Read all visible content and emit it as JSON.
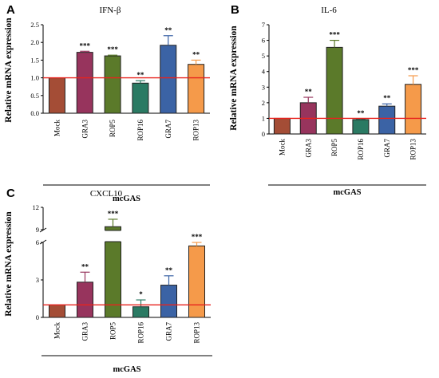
{
  "colors": {
    "Mock": "#a44d36",
    "GRA3": "#97345d",
    "ROP5": "#5b7a2a",
    "ROP16": "#2a7a63",
    "GRA7": "#3b63a5",
    "ROP13": "#f59a4a",
    "reference_line": "#e8231e",
    "error_bar_override_C_ROP13": "#f59a4a"
  },
  "chart_data": [
    {
      "panel": "A",
      "type": "bar",
      "title": "IFN-β",
      "ylabel": "Relative mRNA expression",
      "group_label": "mcGAS",
      "categories": [
        "Mock",
        "GRA3",
        "ROP5",
        "ROP16",
        "GRA7",
        "ROP13"
      ],
      "values": [
        1.0,
        1.72,
        1.62,
        0.85,
        1.92,
        1.38
      ],
      "errors": [
        0.0,
        0.03,
        0.02,
        0.07,
        0.27,
        0.12
      ],
      "significance": [
        "",
        "***",
        "***",
        "**",
        "**",
        "**"
      ],
      "ylim": [
        0,
        2.5
      ],
      "yticks": [
        "0.0",
        "0.5",
        "1.0",
        "1.5",
        "2.0",
        "2.5"
      ],
      "reference_value": 1.0
    },
    {
      "panel": "B",
      "type": "bar",
      "title": "IL-6",
      "ylabel": "Relative mRNA expression",
      "group_label": "mcGAS",
      "categories": [
        "Mock",
        "GRA3",
        "ROP5",
        "ROP16",
        "GRA7",
        "ROP13"
      ],
      "values": [
        1.0,
        2.0,
        5.55,
        0.92,
        1.78,
        3.18
      ],
      "errors": [
        0.0,
        0.35,
        0.45,
        0.06,
        0.15,
        0.55
      ],
      "significance": [
        "",
        "**",
        "***",
        "**",
        "**",
        "***"
      ],
      "ylim": [
        0,
        7
      ],
      "yticks": [
        "0",
        "1",
        "2",
        "3",
        "4",
        "5",
        "6",
        "7"
      ],
      "reference_value": 1.0
    },
    {
      "panel": "C",
      "type": "bar",
      "title": "CXCL10",
      "ylabel": "Relative mRNA expression",
      "group_label": "mcGAS",
      "categories": [
        "Mock",
        "GRA3",
        "ROP5",
        "ROP16",
        "GRA7",
        "ROP13"
      ],
      "values": [
        1.0,
        2.82,
        9.4,
        0.85,
        2.58,
        5.72
      ],
      "errors": [
        0.0,
        0.8,
        1.0,
        0.55,
        0.75,
        0.6
      ],
      "significance": [
        "",
        "**",
        "***",
        "*",
        "**",
        "***"
      ],
      "ylim": [
        0,
        12
      ],
      "axis_break": [
        6,
        9
      ],
      "yticks": [
        "0",
        "3",
        "6",
        "9",
        "12"
      ],
      "reference_value": 1.0
    }
  ]
}
